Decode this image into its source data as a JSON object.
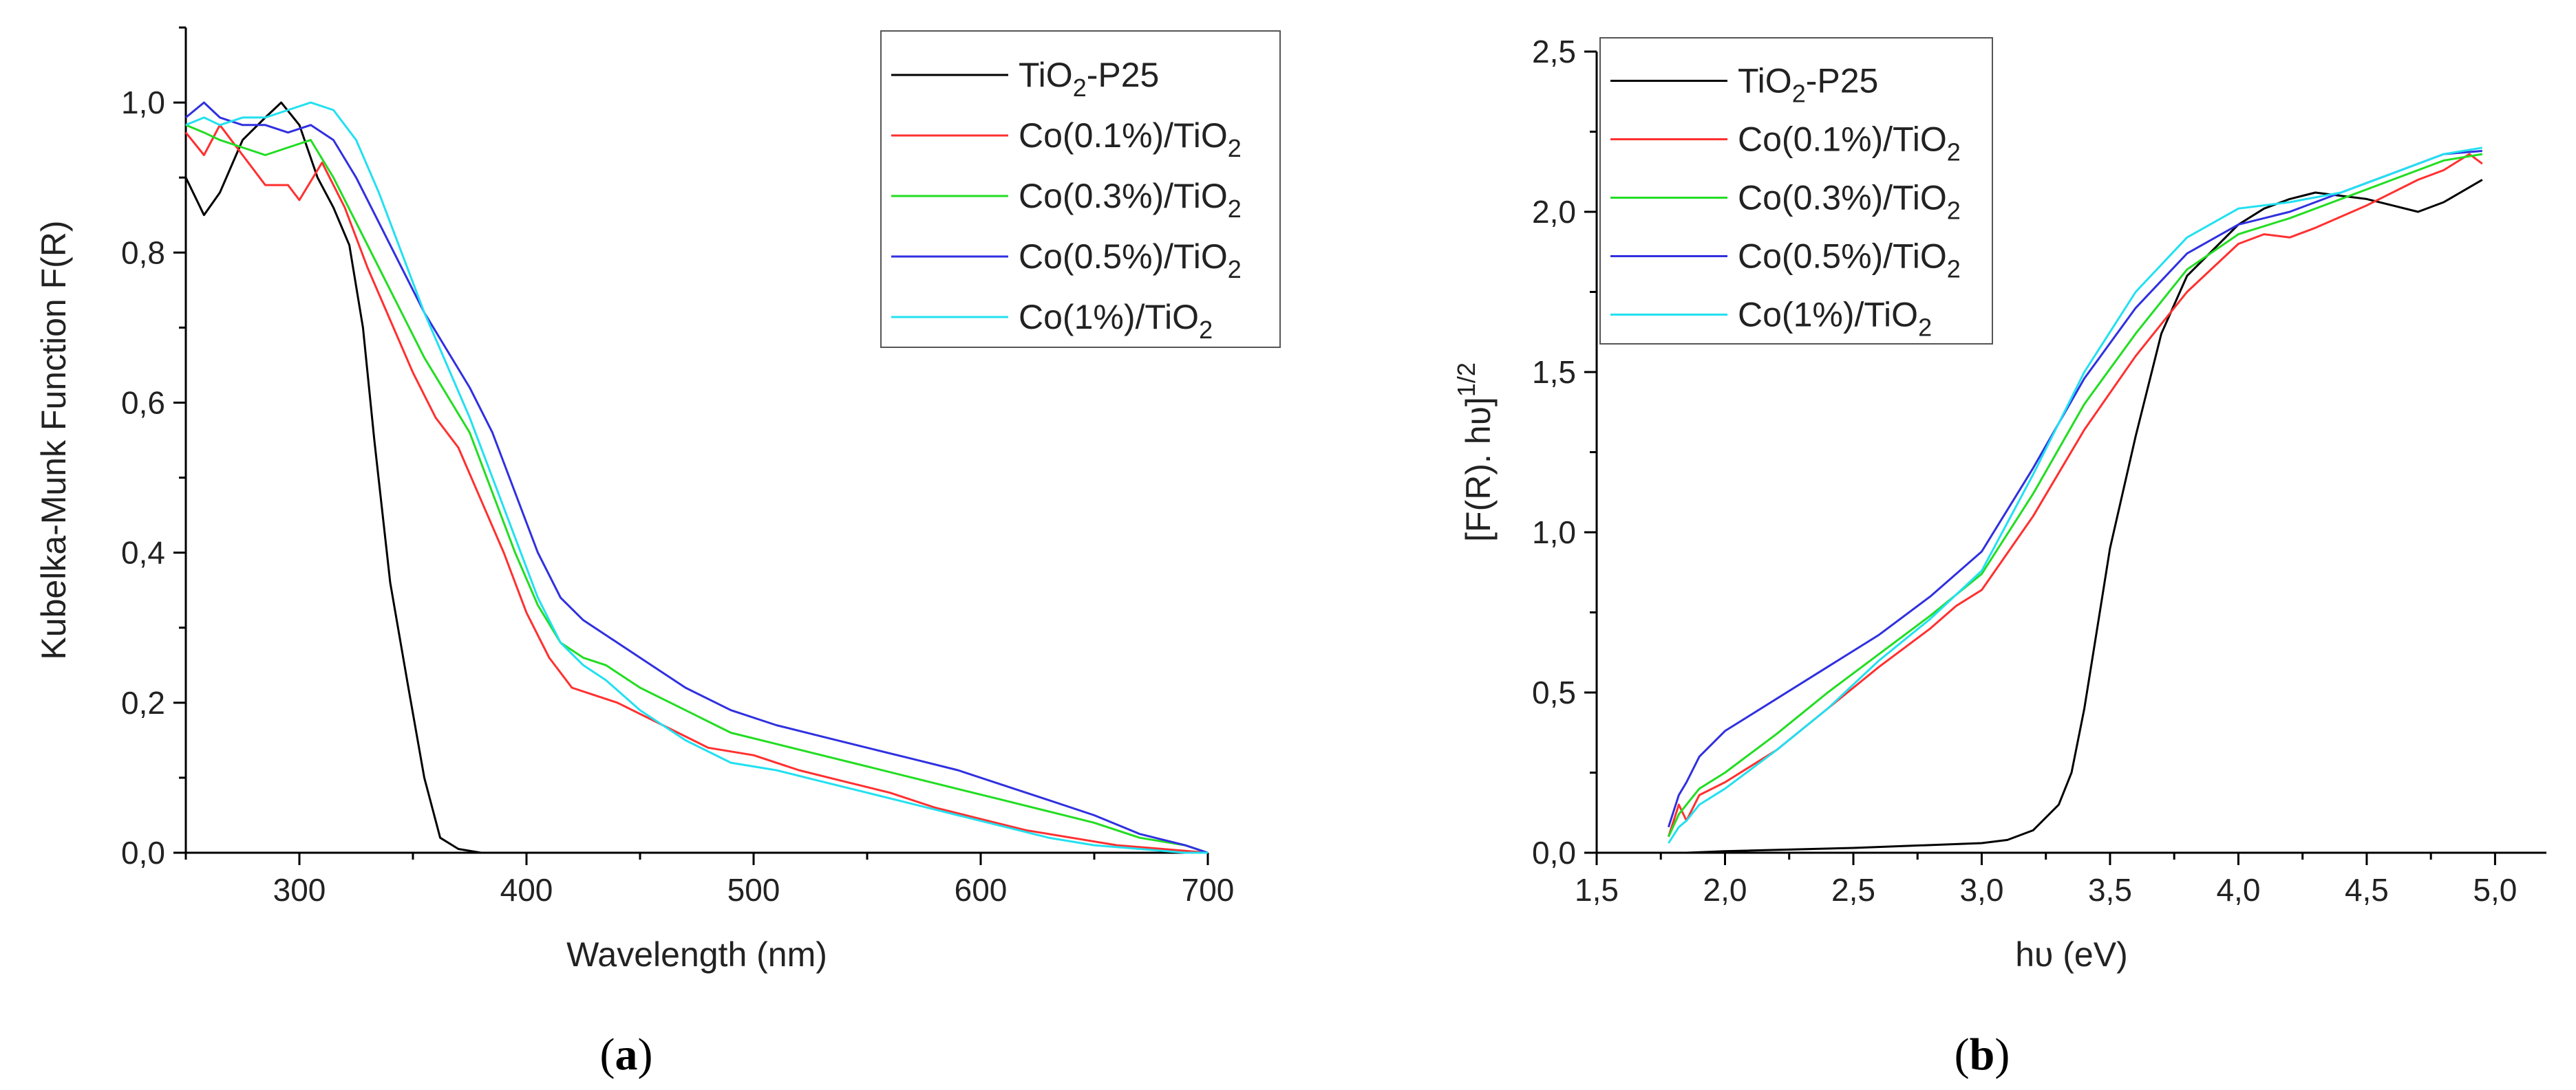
{
  "chart_data": [
    {
      "type": "line",
      "panel_label": "a",
      "xlabel": "Wavelength (nm)",
      "ylabel": "Kubelka-Munk Function F(R)",
      "xlim": [
        250,
        700
      ],
      "ylim": [
        0,
        1.1
      ],
      "xticks": [
        300,
        400,
        500,
        600,
        700
      ],
      "xtick_labels": [
        "300",
        "400",
        "500",
        "600",
        "700"
      ],
      "yticks": [
        0,
        0.2,
        0.4,
        0.6,
        0.8,
        1.0
      ],
      "ytick_labels": [
        "0,0",
        "0,2",
        "0,4",
        "0,6",
        "0,8",
        "1,0"
      ],
      "legend_position": "top-right",
      "series": [
        {
          "name": "TiO2-P25",
          "label_main": "TiO",
          "label_sub": "2",
          "label_tail": "-P25",
          "color": "#000000",
          "x": [
            250,
            258,
            265,
            275,
            285,
            292,
            300,
            308,
            315,
            322,
            328,
            333,
            340,
            348,
            355,
            362,
            370,
            380
          ],
          "y": [
            0.9,
            0.85,
            0.88,
            0.95,
            0.98,
            1.0,
            0.97,
            0.9,
            0.86,
            0.81,
            0.7,
            0.55,
            0.36,
            0.22,
            0.1,
            0.02,
            0.005,
            0.0
          ]
        },
        {
          "name": "Co(0.1%)/TiO2",
          "label_main": "Co(0.1%)/TiO",
          "label_sub": "2",
          "label_tail": "",
          "color": "#ff3030",
          "x": [
            250,
            258,
            265,
            275,
            285,
            295,
            300,
            310,
            320,
            330,
            340,
            350,
            360,
            370,
            380,
            390,
            400,
            410,
            420,
            430,
            440,
            460,
            480,
            500,
            520,
            540,
            560,
            580,
            600,
            620,
            640,
            660,
            680,
            700
          ],
          "y": [
            0.96,
            0.93,
            0.97,
            0.93,
            0.89,
            0.89,
            0.87,
            0.92,
            0.86,
            0.78,
            0.71,
            0.64,
            0.58,
            0.54,
            0.47,
            0.4,
            0.32,
            0.26,
            0.22,
            0.21,
            0.2,
            0.17,
            0.14,
            0.13,
            0.11,
            0.095,
            0.08,
            0.06,
            0.045,
            0.03,
            0.02,
            0.01,
            0.005,
            0.0
          ]
        },
        {
          "name": "Co(0.3%)/TiO2",
          "label_main": "Co(0.3%)/TiO",
          "label_sub": "2",
          "label_tail": "",
          "color": "#22dd22",
          "x": [
            250,
            258,
            265,
            275,
            285,
            295,
            305,
            315,
            325,
            335,
            345,
            355,
            365,
            375,
            385,
            395,
            405,
            415,
            425,
            435,
            450,
            470,
            490,
            510,
            530,
            550,
            570,
            590,
            610,
            630,
            650,
            670,
            690,
            700
          ],
          "y": [
            0.97,
            0.96,
            0.95,
            0.94,
            0.93,
            0.94,
            0.95,
            0.9,
            0.84,
            0.78,
            0.72,
            0.66,
            0.61,
            0.56,
            0.48,
            0.4,
            0.33,
            0.28,
            0.26,
            0.25,
            0.22,
            0.19,
            0.16,
            0.145,
            0.13,
            0.115,
            0.1,
            0.085,
            0.07,
            0.055,
            0.04,
            0.02,
            0.01,
            0.0
          ]
        },
        {
          "name": "Co(0.5%)/TiO2",
          "label_main": "Co(0.5%)/TiO",
          "label_sub": "2",
          "label_tail": "",
          "color": "#3030e0",
          "x": [
            250,
            258,
            265,
            275,
            285,
            295,
            305,
            315,
            325,
            335,
            345,
            355,
            365,
            375,
            385,
            395,
            405,
            415,
            425,
            435,
            450,
            470,
            490,
            510,
            530,
            550,
            570,
            590,
            610,
            630,
            650,
            670,
            690,
            700
          ],
          "y": [
            0.98,
            1.0,
            0.98,
            0.97,
            0.97,
            0.96,
            0.97,
            0.95,
            0.9,
            0.84,
            0.78,
            0.72,
            0.67,
            0.62,
            0.56,
            0.48,
            0.4,
            0.34,
            0.31,
            0.29,
            0.26,
            0.22,
            0.19,
            0.17,
            0.155,
            0.14,
            0.125,
            0.11,
            0.09,
            0.07,
            0.05,
            0.025,
            0.01,
            0.0
          ]
        },
        {
          "name": "Co(1%)/TiO2",
          "label_main": "Co(1%)/TiO",
          "label_sub": "2",
          "label_tail": "",
          "color": "#22e0f0",
          "x": [
            250,
            258,
            265,
            275,
            285,
            295,
            305,
            315,
            325,
            335,
            345,
            355,
            365,
            375,
            385,
            395,
            405,
            415,
            425,
            435,
            450,
            470,
            490,
            510,
            530,
            550,
            570,
            590,
            610,
            630,
            650,
            670,
            690,
            700
          ],
          "y": [
            0.97,
            0.98,
            0.97,
            0.98,
            0.98,
            0.99,
            1.0,
            0.99,
            0.95,
            0.88,
            0.8,
            0.72,
            0.65,
            0.58,
            0.5,
            0.42,
            0.34,
            0.28,
            0.25,
            0.23,
            0.19,
            0.15,
            0.12,
            0.11,
            0.095,
            0.08,
            0.065,
            0.05,
            0.035,
            0.02,
            0.01,
            0.005,
            0.0,
            0.0
          ]
        }
      ]
    },
    {
      "type": "line",
      "panel_label": "b",
      "xlabel": "hυ (eV)",
      "ylabel": "[F(R). hυ]",
      "ylabel_sup": "1/2",
      "xlim": [
        1.5,
        5.2
      ],
      "ylim": [
        0,
        2.5
      ],
      "xticks": [
        1.5,
        2.0,
        2.5,
        3.0,
        3.5,
        4.0,
        4.5,
        5.0
      ],
      "xtick_labels": [
        "1,5",
        "2,0",
        "2,5",
        "3,0",
        "3,5",
        "4,0",
        "4,5",
        "5,0"
      ],
      "yticks": [
        0,
        0.5,
        1.0,
        1.5,
        2.0,
        2.5
      ],
      "ytick_labels": [
        "0,0",
        "0,5",
        "1,0",
        "1,5",
        "2,0",
        "2,5"
      ],
      "legend_position": "top-left",
      "series": [
        {
          "name": "TiO2-P25",
          "label_main": "TiO",
          "label_sub": "2",
          "label_tail": "-P25",
          "color": "#000000",
          "x": [
            1.85,
            2.0,
            2.5,
            3.0,
            3.1,
            3.2,
            3.3,
            3.35,
            3.4,
            3.45,
            3.5,
            3.6,
            3.7,
            3.8,
            3.9,
            4.0,
            4.1,
            4.2,
            4.3,
            4.4,
            4.5,
            4.6,
            4.7,
            4.8,
            4.95
          ],
          "y": [
            0.0,
            0.005,
            0.015,
            0.03,
            0.04,
            0.07,
            0.15,
            0.25,
            0.45,
            0.7,
            0.95,
            1.3,
            1.62,
            1.8,
            1.88,
            1.96,
            2.01,
            2.04,
            2.06,
            2.05,
            2.04,
            2.02,
            2.0,
            2.03,
            2.1
          ]
        },
        {
          "name": "Co(0.1%)/TiO2",
          "label_main": "Co(0.1%)/TiO",
          "label_sub": "2",
          "label_tail": "",
          "color": "#ff3030",
          "x": [
            1.78,
            1.82,
            1.85,
            1.9,
            2.0,
            2.2,
            2.4,
            2.6,
            2.8,
            2.9,
            3.0,
            3.2,
            3.4,
            3.6,
            3.8,
            4.0,
            4.1,
            4.2,
            4.3,
            4.5,
            4.7,
            4.8,
            4.9,
            4.95
          ],
          "y": [
            0.05,
            0.15,
            0.1,
            0.18,
            0.22,
            0.32,
            0.45,
            0.58,
            0.7,
            0.77,
            0.82,
            1.05,
            1.32,
            1.55,
            1.75,
            1.9,
            1.93,
            1.92,
            1.95,
            2.02,
            2.1,
            2.13,
            2.18,
            2.15
          ]
        },
        {
          "name": "Co(0.3%)/TiO2",
          "label_main": "Co(0.3%)/TiO",
          "label_sub": "2",
          "label_tail": "",
          "color": "#22dd22",
          "x": [
            1.78,
            1.82,
            1.85,
            1.9,
            2.0,
            2.2,
            2.4,
            2.6,
            2.8,
            3.0,
            3.2,
            3.4,
            3.6,
            3.8,
            4.0,
            4.2,
            4.4,
            4.6,
            4.8,
            4.95
          ],
          "y": [
            0.05,
            0.12,
            0.15,
            0.2,
            0.25,
            0.37,
            0.5,
            0.62,
            0.74,
            0.87,
            1.12,
            1.4,
            1.62,
            1.82,
            1.93,
            1.98,
            2.04,
            2.1,
            2.16,
            2.18
          ]
        },
        {
          "name": "Co(0.5%)/TiO2",
          "label_main": "Co(0.5%)/TiO",
          "label_sub": "2",
          "label_tail": "",
          "color": "#3030e0",
          "x": [
            1.78,
            1.82,
            1.85,
            1.9,
            2.0,
            2.2,
            2.4,
            2.6,
            2.8,
            3.0,
            3.2,
            3.4,
            3.6,
            3.8,
            4.0,
            4.2,
            4.4,
            4.6,
            4.8,
            4.95
          ],
          "y": [
            0.08,
            0.18,
            0.22,
            0.3,
            0.38,
            0.48,
            0.58,
            0.68,
            0.8,
            0.94,
            1.2,
            1.48,
            1.7,
            1.87,
            1.96,
            2.0,
            2.06,
            2.12,
            2.18,
            2.19
          ]
        },
        {
          "name": "Co(1%)/TiO2",
          "label_main": "Co(1%)/TiO",
          "label_sub": "2",
          "label_tail": "",
          "color": "#22e0f0",
          "x": [
            1.78,
            1.82,
            1.85,
            1.9,
            2.0,
            2.2,
            2.4,
            2.6,
            2.8,
            3.0,
            3.2,
            3.4,
            3.6,
            3.8,
            4.0,
            4.2,
            4.4,
            4.6,
            4.8,
            4.95
          ],
          "y": [
            0.03,
            0.08,
            0.1,
            0.15,
            0.2,
            0.32,
            0.45,
            0.6,
            0.73,
            0.88,
            1.18,
            1.5,
            1.75,
            1.92,
            2.01,
            2.03,
            2.06,
            2.12,
            2.18,
            2.2
          ]
        }
      ]
    }
  ]
}
